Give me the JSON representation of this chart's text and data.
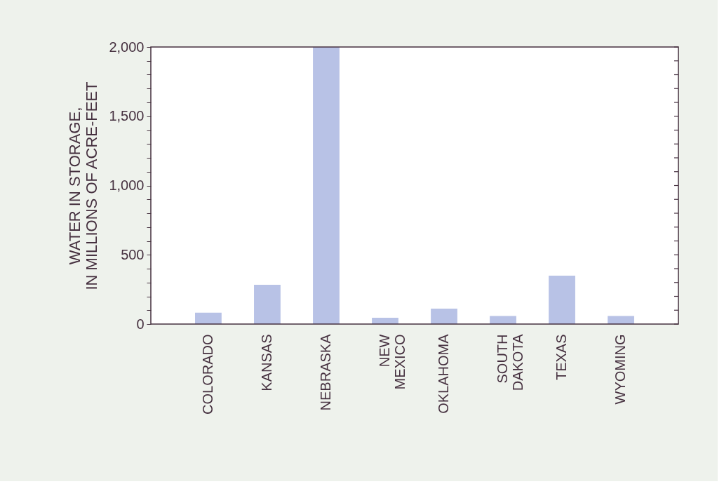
{
  "chart_data": {
    "type": "bar",
    "ylabel": "WATER IN STORAGE,\nIN MILLIONS OF ACRE-FEET",
    "categories": [
      "COLORADO",
      "KANSAS",
      "NEBRASKA",
      "NEW MEXICO",
      "OKLAHOMA",
      "SOUTH DAKOTA",
      "TEXAS",
      "WYOMING"
    ],
    "values": [
      82,
      283,
      2000,
      45,
      111,
      58,
      349,
      58
    ],
    "color": "#b8c2e6",
    "ylim": [
      0,
      2000
    ],
    "yticks": [
      {
        "value": 0,
        "label": "0"
      },
      {
        "value": 100,
        "label": null
      },
      {
        "value": 200,
        "label": null
      },
      {
        "value": 300,
        "label": null
      },
      {
        "value": 400,
        "label": null
      },
      {
        "value": 500,
        "label": "500"
      },
      {
        "value": 600,
        "label": null
      },
      {
        "value": 700,
        "label": null
      },
      {
        "value": 800,
        "label": null
      },
      {
        "value": 900,
        "label": null
      },
      {
        "value": 1000,
        "label": "1,000"
      },
      {
        "value": 1100,
        "label": null
      },
      {
        "value": 1200,
        "label": null
      },
      {
        "value": 1300,
        "label": null
      },
      {
        "value": 1400,
        "label": null
      },
      {
        "value": 1500,
        "label": "1,500"
      },
      {
        "value": 1600,
        "label": null
      },
      {
        "value": 1700,
        "label": null
      },
      {
        "value": 1800,
        "label": null
      },
      {
        "value": 1900,
        "label": null
      },
      {
        "value": 2000,
        "label": "2,000"
      }
    ],
    "grid": false
  }
}
